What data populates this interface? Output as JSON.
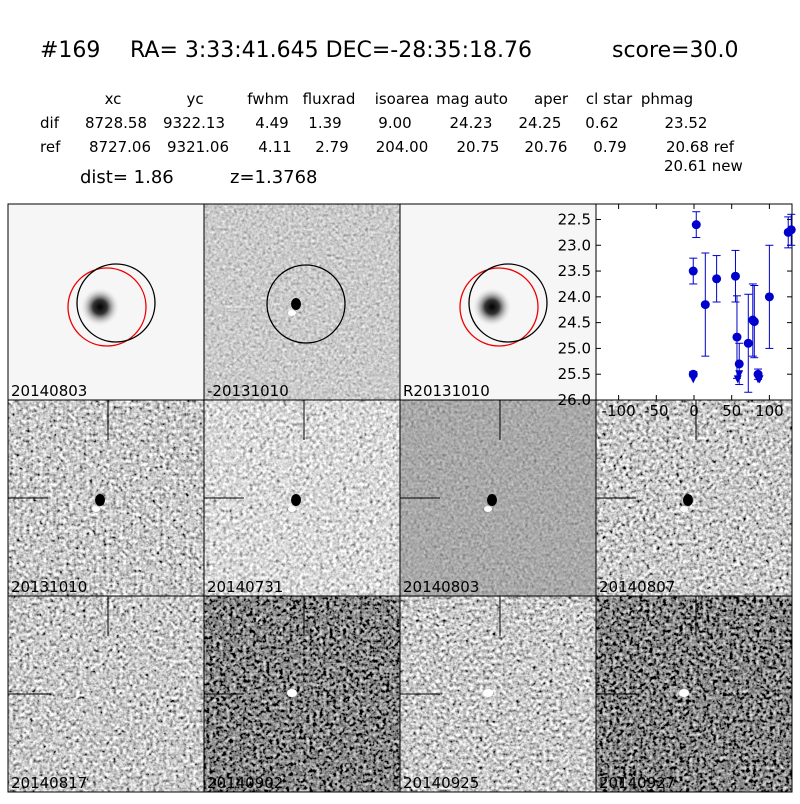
{
  "header": {
    "id": "#169",
    "coords": "RA= 3:33:41.645 DEC=-28:35:18.76",
    "score": "score=30.0"
  },
  "table": {
    "columns": [
      "xc",
      "yc",
      "fwhm",
      "fluxrad",
      "isoarea",
      "mag auto",
      "aper",
      "cl star",
      "phmag"
    ],
    "rows": [
      [
        "dif",
        "8728.58",
        "9322.13",
        "4.49",
        "1.39",
        "9.00",
        "24.23",
        "24.25",
        "0.62",
        "23.52"
      ],
      [
        "ref",
        "8727.06",
        "9321.06",
        "4.11",
        "2.79",
        "204.00",
        "20.75",
        "20.76",
        "0.79",
        "20.68 ref"
      ]
    ],
    "extra": "20.61 new"
  },
  "info": {
    "dist": "dist=  1.86",
    "z": "z=1.3768"
  },
  "stamps": [
    {
      "label": "20140803"
    },
    {
      "label": "-20131010"
    },
    {
      "label": "R20131010"
    },
    {
      "label": "20131010"
    },
    {
      "label": "20140731"
    },
    {
      "label": "20140803",
      "color": "#ff0000"
    },
    {
      "label": "20140807"
    },
    {
      "label": "20140817"
    },
    {
      "label": "20140902"
    },
    {
      "label": "20140925"
    },
    {
      "label": "20140927"
    }
  ],
  "chart_data": {
    "type": "scatter",
    "color": "#0000cc",
    "xlim": [
      -130,
      130
    ],
    "xticks": [
      -100,
      -50,
      0,
      50,
      100
    ],
    "ylim": [
      26.0,
      22.2
    ],
    "yticks": [
      {
        "value": 22.5,
        "label": "22.5"
      },
      {
        "value": 23.0,
        "label": "23.0"
      },
      {
        "value": 23.5,
        "label": "23.5"
      },
      {
        "value": 24.0,
        "label": "24.0"
      },
      {
        "value": 24.5,
        "label": "24.5"
      },
      {
        "value": 25.0,
        "label": "25.0"
      },
      {
        "value": 25.5,
        "label": "25.5"
      },
      {
        "value": 26.0,
        "label": "26.0"
      }
    ],
    "points": {
      "x": [
        -1,
        -1,
        3,
        15,
        30,
        55,
        57,
        60,
        72,
        78,
        80,
        85,
        100,
        125,
        129
      ],
      "values": [
        25.5,
        23.5,
        22.6,
        24.15,
        23.65,
        23.6,
        24.78,
        25.3,
        24.9,
        24.45,
        24.48,
        25.5,
        24.0,
        22.75,
        22.7
      ],
      "errors": [
        0.05,
        0.25,
        0.25,
        1.0,
        0.45,
        0.5,
        0.8,
        0.4,
        0.95,
        0.7,
        0.7,
        0.1,
        1.0,
        0.3,
        0.3
      ]
    },
    "limits": {
      "x": [
        -1,
        58,
        60,
        85,
        87
      ],
      "values": [
        25.6,
        25.6,
        25.5,
        25.6,
        25.6
      ]
    }
  }
}
